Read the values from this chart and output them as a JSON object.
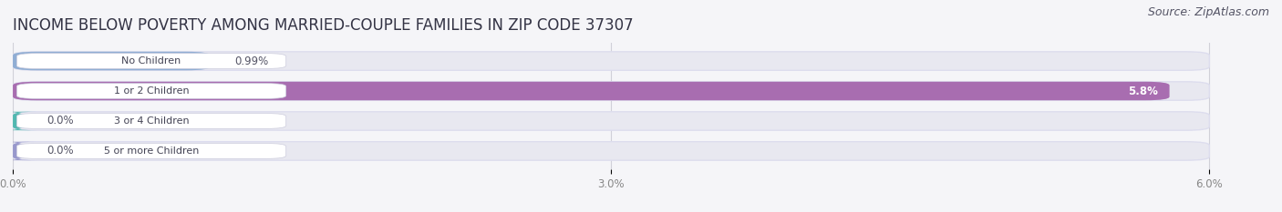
{
  "title": "INCOME BELOW POVERTY AMONG MARRIED-COUPLE FAMILIES IN ZIP CODE 37307",
  "source": "Source: ZipAtlas.com",
  "categories": [
    "No Children",
    "1 or 2 Children",
    "3 or 4 Children",
    "5 or more Children"
  ],
  "values": [
    0.99,
    5.8,
    0.0,
    0.0
  ],
  "bar_colors": [
    "#90aed4",
    "#a86db0",
    "#52b8b0",
    "#9898cc"
  ],
  "xlim": [
    0,
    6.3
  ],
  "xlim_display": [
    0,
    6.0
  ],
  "xticks": [
    0.0,
    3.0,
    6.0
  ],
  "xtick_labels": [
    "0.0%",
    "3.0%",
    "6.0%"
  ],
  "title_fontsize": 12,
  "source_fontsize": 9,
  "bar_height": 0.62,
  "background_color": "#f5f5f8",
  "bar_bg_color": "#e8e8f0",
  "value_labels": [
    "0.99%",
    "5.8%",
    "0.0%",
    "0.0%"
  ],
  "label_pill_color": "#ffffff",
  "label_text_color": "#444455",
  "grid_color": "#d0d0d8",
  "tick_color": "#888888"
}
